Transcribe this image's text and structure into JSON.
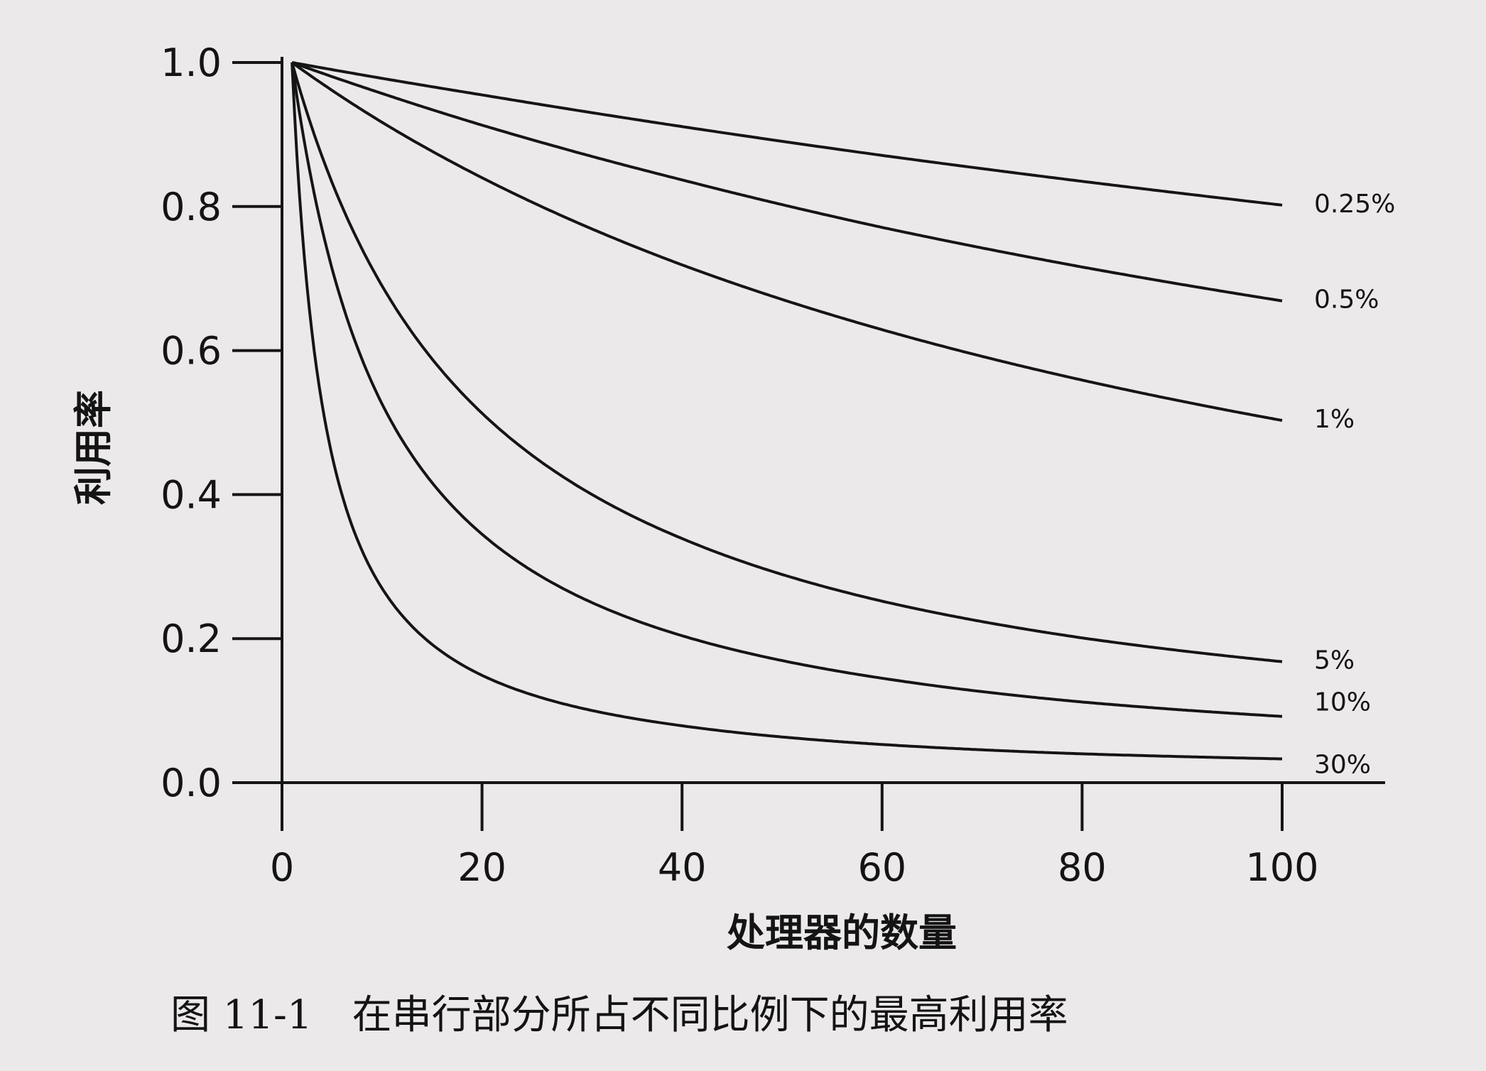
{
  "chart_data": {
    "type": "line",
    "caption": "图 11-1　在串行部分所占不同比例下的最高利用率",
    "xlabel": "处理器的数量",
    "ylabel": "利用率",
    "xlim": [
      0,
      100
    ],
    "ylim": [
      0,
      1.0
    ],
    "xticks": [
      0,
      20,
      40,
      60,
      80,
      100
    ],
    "yticks": [
      0.0,
      0.2,
      0.4,
      0.6,
      0.8,
      1.0
    ],
    "xtick_labels": [
      "0",
      "20",
      "40",
      "60",
      "80",
      "100"
    ],
    "ytick_labels": [
      "0.0",
      "0.2",
      "0.4",
      "0.6",
      "0.8",
      "1.0"
    ],
    "grid": false,
    "legend": "inline labels at right end of each curve",
    "series": [
      {
        "name": "0.25%",
        "x": [
          1,
          10,
          20,
          40,
          60,
          80,
          100
        ],
        "values": [
          1.0,
          0.978,
          0.955,
          0.911,
          0.871,
          0.835,
          0.802
        ]
      },
      {
        "name": "0.5%",
        "x": [
          1,
          10,
          20,
          40,
          60,
          80,
          100
        ],
        "values": [
          1.0,
          0.957,
          0.913,
          0.837,
          0.771,
          0.716,
          0.669
        ]
      },
      {
        "name": "1%",
        "x": [
          1,
          10,
          20,
          40,
          60,
          80,
          100
        ],
        "values": [
          1.0,
          0.917,
          0.84,
          0.719,
          0.629,
          0.559,
          0.503
        ]
      },
      {
        "name": "5%",
        "x": [
          1,
          10,
          20,
          40,
          60,
          80,
          100
        ],
        "values": [
          1.0,
          0.69,
          0.513,
          0.339,
          0.252,
          0.201,
          0.168
        ]
      },
      {
        "name": "10%",
        "x": [
          1,
          10,
          20,
          40,
          60,
          80,
          100
        ],
        "values": [
          1.0,
          0.526,
          0.345,
          0.204,
          0.145,
          0.112,
          0.092
        ]
      },
      {
        "name": "30%",
        "x": [
          1,
          10,
          20,
          40,
          60,
          80,
          100
        ],
        "values": [
          1.0,
          0.27,
          0.149,
          0.079,
          0.053,
          0.04,
          0.033
        ]
      }
    ]
  }
}
